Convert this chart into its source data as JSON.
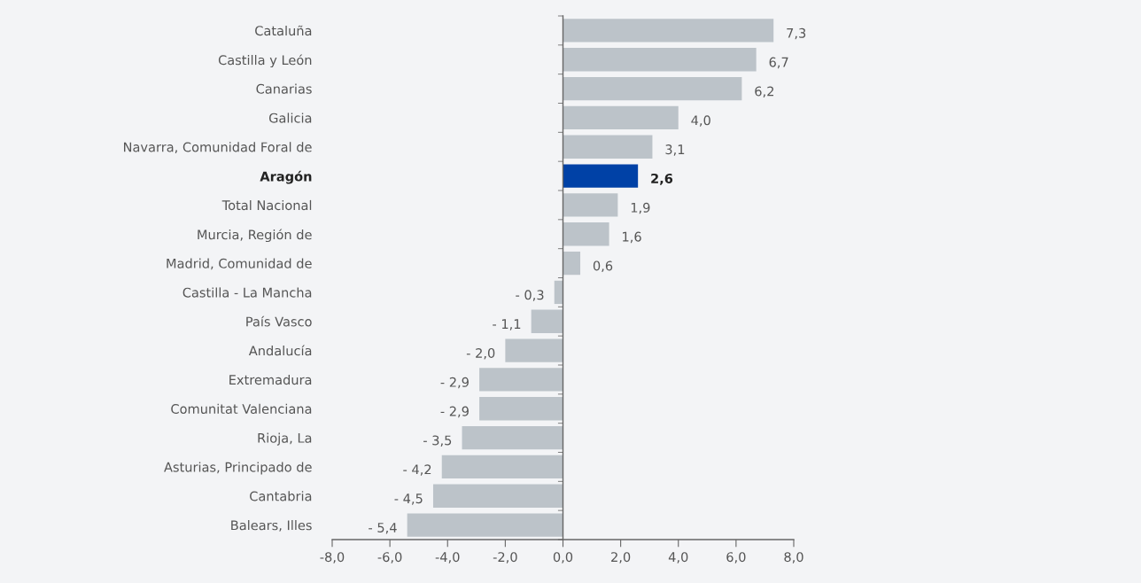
{
  "chart_data": {
    "type": "bar",
    "orientation": "horizontal",
    "categories": [
      "Cataluña",
      "Castilla y León",
      "Canarias",
      "Galicia",
      "Navarra, Comunidad Foral de",
      "Aragón",
      "Total Nacional",
      "Murcia, Región de",
      "Madrid, Comunidad de",
      "Castilla - La Mancha",
      "País Vasco",
      "Andalucía",
      "Extremadura",
      "Comunitat Valenciana",
      "Rioja, La",
      "Asturias, Principado de",
      "Cantabria",
      "Balears, Illes"
    ],
    "values": [
      7.3,
      6.7,
      6.2,
      4.0,
      3.1,
      2.6,
      1.9,
      1.6,
      0.6,
      -0.3,
      -1.1,
      -2.0,
      -2.9,
      -2.9,
      -3.5,
      -4.2,
      -4.5,
      -5.4
    ],
    "colors": [
      "#bcc3c9",
      "#bcc3c9",
      "#bcc3c9",
      "#bcc3c9",
      "#bcc3c9",
      "#0041a6",
      "#bcc3c9",
      "#bcc3c9",
      "#bcc3c9",
      "#bcc3c9",
      "#bcc3c9",
      "#bcc3c9",
      "#bcc3c9",
      "#bcc3c9",
      "#bcc3c9",
      "#bcc3c9",
      "#bcc3c9",
      "#bcc3c9"
    ],
    "value_labels": [
      "7,3",
      "6,7",
      "6,2",
      "4,0",
      "3,1",
      "2,6",
      "1,9",
      "1,6",
      "0,6",
      "- 0,3",
      "- 1,1",
      "- 2,0",
      "- 2,9",
      "- 2,9",
      "- 3,5",
      "- 4,2",
      "- 4,5",
      "- 5,4"
    ],
    "xlim": [
      -8,
      8
    ],
    "xticks": [
      {
        "value": -8,
        "label": "-8,0"
      },
      {
        "value": -6,
        "label": "-6,0"
      },
      {
        "value": -4,
        "label": "-4,0"
      },
      {
        "value": -2,
        "label": "-2,0"
      },
      {
        "value": 0,
        "label": "0,0"
      },
      {
        "value": 2,
        "label": "2,0"
      },
      {
        "value": 4,
        "label": "4,0"
      },
      {
        "value": 6,
        "label": "6,0"
      },
      {
        "value": 8,
        "label": "8,0"
      }
    ]
  }
}
